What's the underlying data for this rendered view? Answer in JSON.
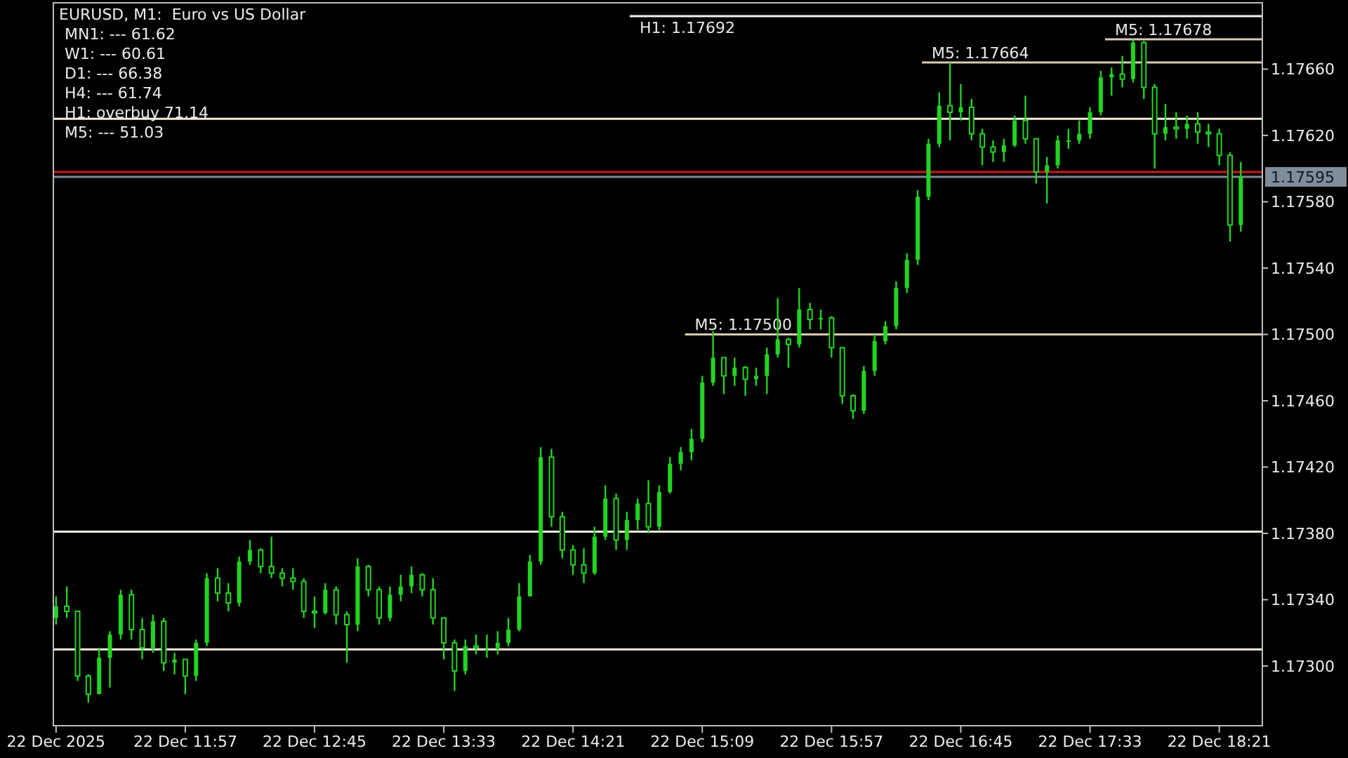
{
  "chart_data": {
    "type": "candlestick",
    "title": "EURUSD, M1:  Euro vs US Dollar",
    "color": "#22d422",
    "x": [
      "2025-12-22T11:09",
      "2025-12-22T11:13",
      "2025-12-22T11:17",
      "2025-12-22T11:21",
      "2025-12-22T11:25",
      "2025-12-22T11:29",
      "2025-12-22T11:33",
      "2025-12-22T11:37",
      "2025-12-22T11:41",
      "2025-12-22T11:45",
      "2025-12-22T11:49",
      "2025-12-22T11:53",
      "2025-12-22T11:57",
      "2025-12-22T12:01",
      "2025-12-22T12:05",
      "2025-12-22T12:09",
      "2025-12-22T12:13",
      "2025-12-22T12:17",
      "2025-12-22T12:21",
      "2025-12-22T12:25",
      "2025-12-22T12:29",
      "2025-12-22T12:33",
      "2025-12-22T12:37",
      "2025-12-22T12:41",
      "2025-12-22T12:45",
      "2025-12-22T12:49",
      "2025-12-22T12:53",
      "2025-12-22T12:57",
      "2025-12-22T13:01",
      "2025-12-22T13:05",
      "2025-12-22T13:09",
      "2025-12-22T13:13",
      "2025-12-22T13:17",
      "2025-12-22T13:21",
      "2025-12-22T13:25",
      "2025-12-22T13:29",
      "2025-12-22T13:33",
      "2025-12-22T13:37",
      "2025-12-22T13:41",
      "2025-12-22T13:45",
      "2025-12-22T13:49",
      "2025-12-22T13:53",
      "2025-12-22T13:57",
      "2025-12-22T14:01",
      "2025-12-22T14:05",
      "2025-12-22T14:09",
      "2025-12-22T14:13",
      "2025-12-22T14:17",
      "2025-12-22T14:21",
      "2025-12-22T14:25",
      "2025-12-22T14:29",
      "2025-12-22T14:33",
      "2025-12-22T14:37",
      "2025-12-22T14:41",
      "2025-12-22T14:45",
      "2025-12-22T14:49",
      "2025-12-22T14:53",
      "2025-12-22T14:57",
      "2025-12-22T15:01",
      "2025-12-22T15:05",
      "2025-12-22T15:09",
      "2025-12-22T15:13",
      "2025-12-22T15:17",
      "2025-12-22T15:21",
      "2025-12-22T15:25",
      "2025-12-22T15:29",
      "2025-12-22T15:33",
      "2025-12-22T15:37",
      "2025-12-22T15:41",
      "2025-12-22T15:45",
      "2025-12-22T15:49",
      "2025-12-22T15:53",
      "2025-12-22T15:57",
      "2025-12-22T16:01",
      "2025-12-22T16:05",
      "2025-12-22T16:09",
      "2025-12-22T16:13",
      "2025-12-22T16:17",
      "2025-12-22T16:21",
      "2025-12-22T16:25",
      "2025-12-22T16:29",
      "2025-12-22T16:33",
      "2025-12-22T16:37",
      "2025-12-22T16:41",
      "2025-12-22T16:45",
      "2025-12-22T16:49",
      "2025-12-22T16:53",
      "2025-12-22T16:57",
      "2025-12-22T17:01",
      "2025-12-22T17:05",
      "2025-12-22T17:09",
      "2025-12-22T17:13",
      "2025-12-22T17:17",
      "2025-12-22T17:21",
      "2025-12-22T17:25",
      "2025-12-22T17:29",
      "2025-12-22T17:33",
      "2025-12-22T17:37",
      "2025-12-22T17:41",
      "2025-12-22T17:45",
      "2025-12-22T17:49",
      "2025-12-22T17:53",
      "2025-12-22T17:57",
      "2025-12-22T18:01",
      "2025-12-22T18:05",
      "2025-12-22T18:09",
      "2025-12-22T18:13",
      "2025-12-22T18:17",
      "2025-12-22T18:21",
      "2025-12-22T18:25",
      "2025-12-22T18:29"
    ],
    "ohlc": [
      [
        1.17329,
        1.17342,
        1.17325,
        1.17336
      ],
      [
        1.17336,
        1.17348,
        1.17329,
        1.17333
      ],
      [
        1.17333,
        1.17333,
        1.17291,
        1.17294
      ],
      [
        1.17294,
        1.17295,
        1.17278,
        1.17283
      ],
      [
        1.17283,
        1.17311,
        1.17283,
        1.17305
      ],
      [
        1.17305,
        1.17321,
        1.17287,
        1.17319
      ],
      [
        1.17319,
        1.17346,
        1.17316,
        1.17343
      ],
      [
        1.17343,
        1.17346,
        1.17316,
        1.17322
      ],
      [
        1.17322,
        1.17329,
        1.17304,
        1.17311
      ],
      [
        1.17311,
        1.17331,
        1.17308,
        1.17327
      ],
      [
        1.17327,
        1.17329,
        1.17297,
        1.17302
      ],
      [
        1.17302,
        1.17308,
        1.17295,
        1.17304
      ],
      [
        1.17304,
        1.17304,
        1.17283,
        1.17294
      ],
      [
        1.17294,
        1.17316,
        1.17291,
        1.17314
      ],
      [
        1.17314,
        1.17356,
        1.17312,
        1.17353
      ],
      [
        1.17353,
        1.17359,
        1.17339,
        1.17344
      ],
      [
        1.17344,
        1.1735,
        1.17333,
        1.17338
      ],
      [
        1.17338,
        1.17366,
        1.17336,
        1.17363
      ],
      [
        1.17363,
        1.17376,
        1.17361,
        1.1737
      ],
      [
        1.1737,
        1.17371,
        1.17356,
        1.1736
      ],
      [
        1.1736,
        1.17378,
        1.17353,
        1.17356
      ],
      [
        1.17356,
        1.17359,
        1.17348,
        1.17353
      ],
      [
        1.17353,
        1.17359,
        1.17346,
        1.17351
      ],
      [
        1.17351,
        1.17353,
        1.17329,
        1.17333
      ],
      [
        1.17333,
        1.17342,
        1.17323,
        1.17332
      ],
      [
        1.17332,
        1.1735,
        1.17331,
        1.17346
      ],
      [
        1.17346,
        1.17348,
        1.17325,
        1.17331
      ],
      [
        1.17331,
        1.17333,
        1.17302,
        1.17325
      ],
      [
        1.17325,
        1.17365,
        1.17321,
        1.1736
      ],
      [
        1.1736,
        1.17361,
        1.17342,
        1.17346
      ],
      [
        1.17346,
        1.17348,
        1.17325,
        1.17329
      ],
      [
        1.17329,
        1.17348,
        1.17327,
        1.17343
      ],
      [
        1.17343,
        1.17355,
        1.17339,
        1.17348
      ],
      [
        1.17348,
        1.1736,
        1.17344,
        1.17355
      ],
      [
        1.17355,
        1.17356,
        1.17342,
        1.17346
      ],
      [
        1.17346,
        1.17353,
        1.17325,
        1.17329
      ],
      [
        1.17329,
        1.17329,
        1.17304,
        1.17314
      ],
      [
        1.17314,
        1.17316,
        1.17285,
        1.17297
      ],
      [
        1.17297,
        1.17316,
        1.17295,
        1.17312
      ],
      [
        1.17312,
        1.17319,
        1.17307,
        1.17311
      ],
      [
        1.17311,
        1.17319,
        1.17305,
        1.17311
      ],
      [
        1.17311,
        1.17321,
        1.17307,
        1.17314
      ],
      [
        1.17314,
        1.17329,
        1.17312,
        1.17322
      ],
      [
        1.17322,
        1.1735,
        1.17321,
        1.17342
      ],
      [
        1.17342,
        1.17367,
        1.17342,
        1.17363
      ],
      [
        1.17363,
        1.17432,
        1.17361,
        1.17426
      ],
      [
        1.17426,
        1.17431,
        1.17384,
        1.1739
      ],
      [
        1.1739,
        1.17393,
        1.17365,
        1.1737
      ],
      [
        1.1737,
        1.17373,
        1.17355,
        1.17361
      ],
      [
        1.17361,
        1.17371,
        1.1735,
        1.17356
      ],
      [
        1.17356,
        1.17384,
        1.17355,
        1.17378
      ],
      [
        1.17378,
        1.17409,
        1.17376,
        1.17401
      ],
      [
        1.17401,
        1.17404,
        1.1737,
        1.17376
      ],
      [
        1.17376,
        1.17393,
        1.1737,
        1.17388
      ],
      [
        1.17388,
        1.17401,
        1.17382,
        1.17398
      ],
      [
        1.17398,
        1.17412,
        1.1738,
        1.17384
      ],
      [
        1.17384,
        1.17409,
        1.17382,
        1.17405
      ],
      [
        1.17405,
        1.17426,
        1.17404,
        1.17422
      ],
      [
        1.17422,
        1.17432,
        1.17418,
        1.17429
      ],
      [
        1.17429,
        1.17443,
        1.17424,
        1.17437
      ],
      [
        1.17437,
        1.17475,
        1.17435,
        1.17471
      ],
      [
        1.17471,
        1.17502,
        1.17469,
        1.17486
      ],
      [
        1.17486,
        1.17486,
        1.17464,
        1.17475
      ],
      [
        1.17475,
        1.17486,
        1.17469,
        1.1748
      ],
      [
        1.1748,
        1.17481,
        1.17463,
        1.17473
      ],
      [
        1.17473,
        1.1748,
        1.17469,
        1.17475
      ],
      [
        1.17475,
        1.17492,
        1.17464,
        1.17488
      ],
      [
        1.17488,
        1.17522,
        1.17486,
        1.17497
      ],
      [
        1.17497,
        1.17498,
        1.1748,
        1.17494
      ],
      [
        1.17494,
        1.17528,
        1.17492,
        1.17515
      ],
      [
        1.17515,
        1.17519,
        1.17503,
        1.17509
      ],
      [
        1.17509,
        1.17515,
        1.17503,
        1.1751
      ],
      [
        1.1751,
        1.17511,
        1.17486,
        1.17492
      ],
      [
        1.17492,
        1.17492,
        1.17458,
        1.17463
      ],
      [
        1.17463,
        1.17464,
        1.17449,
        1.17454
      ],
      [
        1.17454,
        1.17481,
        1.17452,
        1.17478
      ],
      [
        1.17478,
        1.175,
        1.17475,
        1.17496
      ],
      [
        1.17496,
        1.17508,
        1.17494,
        1.17505
      ],
      [
        1.17505,
        1.17532,
        1.17503,
        1.17528
      ],
      [
        1.17528,
        1.17549,
        1.17525,
        1.17545
      ],
      [
        1.17545,
        1.17587,
        1.17542,
        1.17583
      ],
      [
        1.17583,
        1.17618,
        1.17581,
        1.17615
      ],
      [
        1.17615,
        1.17646,
        1.17613,
        1.17638
      ],
      [
        1.17638,
        1.17664,
        1.17617,
        1.17634
      ],
      [
        1.17634,
        1.17651,
        1.17629,
        1.17637
      ],
      [
        1.17637,
        1.17642,
        1.17617,
        1.17621
      ],
      [
        1.17621,
        1.17624,
        1.17602,
        1.17613
      ],
      [
        1.17613,
        1.17617,
        1.17604,
        1.1761
      ],
      [
        1.1761,
        1.17618,
        1.17604,
        1.17614
      ],
      [
        1.17614,
        1.17632,
        1.17613,
        1.17629
      ],
      [
        1.17629,
        1.17644,
        1.17615,
        1.17618
      ],
      [
        1.17618,
        1.17618,
        1.17591,
        1.17598
      ],
      [
        1.17598,
        1.17607,
        1.17579,
        1.17602
      ],
      [
        1.17602,
        1.1762,
        1.176,
        1.17617
      ],
      [
        1.17617,
        1.17624,
        1.17612,
        1.17617
      ],
      [
        1.17617,
        1.17629,
        1.17615,
        1.17621
      ],
      [
        1.17621,
        1.17637,
        1.17618,
        1.17634
      ],
      [
        1.17634,
        1.17659,
        1.17632,
        1.17655
      ],
      [
        1.17655,
        1.17661,
        1.17644,
        1.17657
      ],
      [
        1.17657,
        1.17668,
        1.17649,
        1.17654
      ],
      [
        1.17654,
        1.17678,
        1.17652,
        1.17676
      ],
      [
        1.17676,
        1.17677,
        1.17642,
        1.17649
      ],
      [
        1.17649,
        1.17651,
        1.176,
        1.17621
      ],
      [
        1.17621,
        1.17639,
        1.17617,
        1.17625
      ],
      [
        1.17625,
        1.17634,
        1.17618,
        1.17624
      ],
      [
        1.17624,
        1.17632,
        1.17618,
        1.17627
      ],
      [
        1.17627,
        1.17634,
        1.17615,
        1.17622
      ],
      [
        1.17622,
        1.17627,
        1.17613,
        1.17621
      ],
      [
        1.17621,
        1.17624,
        1.17602,
        1.17608
      ],
      [
        1.17608,
        1.1761,
        1.17556,
        1.17566
      ],
      [
        1.17566,
        1.17604,
        1.17562,
        1.17595
      ]
    ],
    "xlim": [
      "2025-12-22T11:08",
      "2025-12-22T18:37"
    ],
    "xticks": [
      {
        "value": "2025-12-22T11:09",
        "label": "22 Dec 2025"
      },
      {
        "value": "2025-12-22T11:57",
        "label": "22 Dec 11:57"
      },
      {
        "value": "2025-12-22T12:45",
        "label": "22 Dec 12:45"
      },
      {
        "value": "2025-12-22T13:33",
        "label": "22 Dec 13:33"
      },
      {
        "value": "2025-12-22T14:21",
        "label": "22 Dec 14:21"
      },
      {
        "value": "2025-12-22T15:09",
        "label": "22 Dec 15:09"
      },
      {
        "value": "2025-12-22T15:57",
        "label": "22 Dec 15:57"
      },
      {
        "value": "2025-12-22T16:45",
        "label": "22 Dec 16:45"
      },
      {
        "value": "2025-12-22T17:33",
        "label": "22 Dec 17:33"
      },
      {
        "value": "2025-12-22T18:21",
        "label": "22 Dec 18:21"
      }
    ],
    "ylim": [
      1.17264,
      1.177
    ],
    "yticks": [
      {
        "value": 1.173,
        "label": "1.17300"
      },
      {
        "value": 1.1734,
        "label": "1.17340"
      },
      {
        "value": 1.1738,
        "label": "1.17380"
      },
      {
        "value": 1.1742,
        "label": "1.17420"
      },
      {
        "value": 1.1746,
        "label": "1.17460"
      },
      {
        "value": 1.175,
        "label": "1.17500"
      },
      {
        "value": 1.1754,
        "label": "1.17540"
      },
      {
        "value": 1.1758,
        "label": "1.17580"
      },
      {
        "value": 1.1762,
        "label": "1.17620"
      },
      {
        "value": 1.1766,
        "label": "1.17660"
      }
    ],
    "ref_lines": [
      {
        "axis": "y",
        "value": 1.17692,
        "label": "H1: 1.17692",
        "color": "#f4f4f4"
      },
      {
        "axis": "y",
        "value": 1.17678,
        "label": "M5: 1.17678",
        "color": "#d8cbb4"
      },
      {
        "axis": "y",
        "value": 1.17664,
        "label": "M5: 1.17664",
        "color": "#d8cbb4"
      },
      {
        "axis": "y",
        "value": 1.1763,
        "color": "#f2ecd8"
      },
      {
        "axis": "y",
        "value": 1.175,
        "label": "M5: 1.17500",
        "color": "#d8cbb4"
      },
      {
        "axis": "y",
        "value": 1.17381,
        "color": "#f2ecd8"
      },
      {
        "axis": "y",
        "value": 1.1731,
        "color": "#f2ecd8"
      },
      {
        "axis": "y",
        "value": 1.17598,
        "color": "#d01818"
      },
      {
        "axis": "y",
        "value": 1.17595,
        "label": "1.17595",
        "color": "#7f8c99"
      }
    ],
    "annotations": [
      "MN1: --- 61.62",
      "W1: --- 60.61",
      "D1: --- 66.38",
      "H4: --- 61.74",
      "H1: overbuy 71.14",
      "M5: --- 51.03"
    ],
    "grid": false
  }
}
